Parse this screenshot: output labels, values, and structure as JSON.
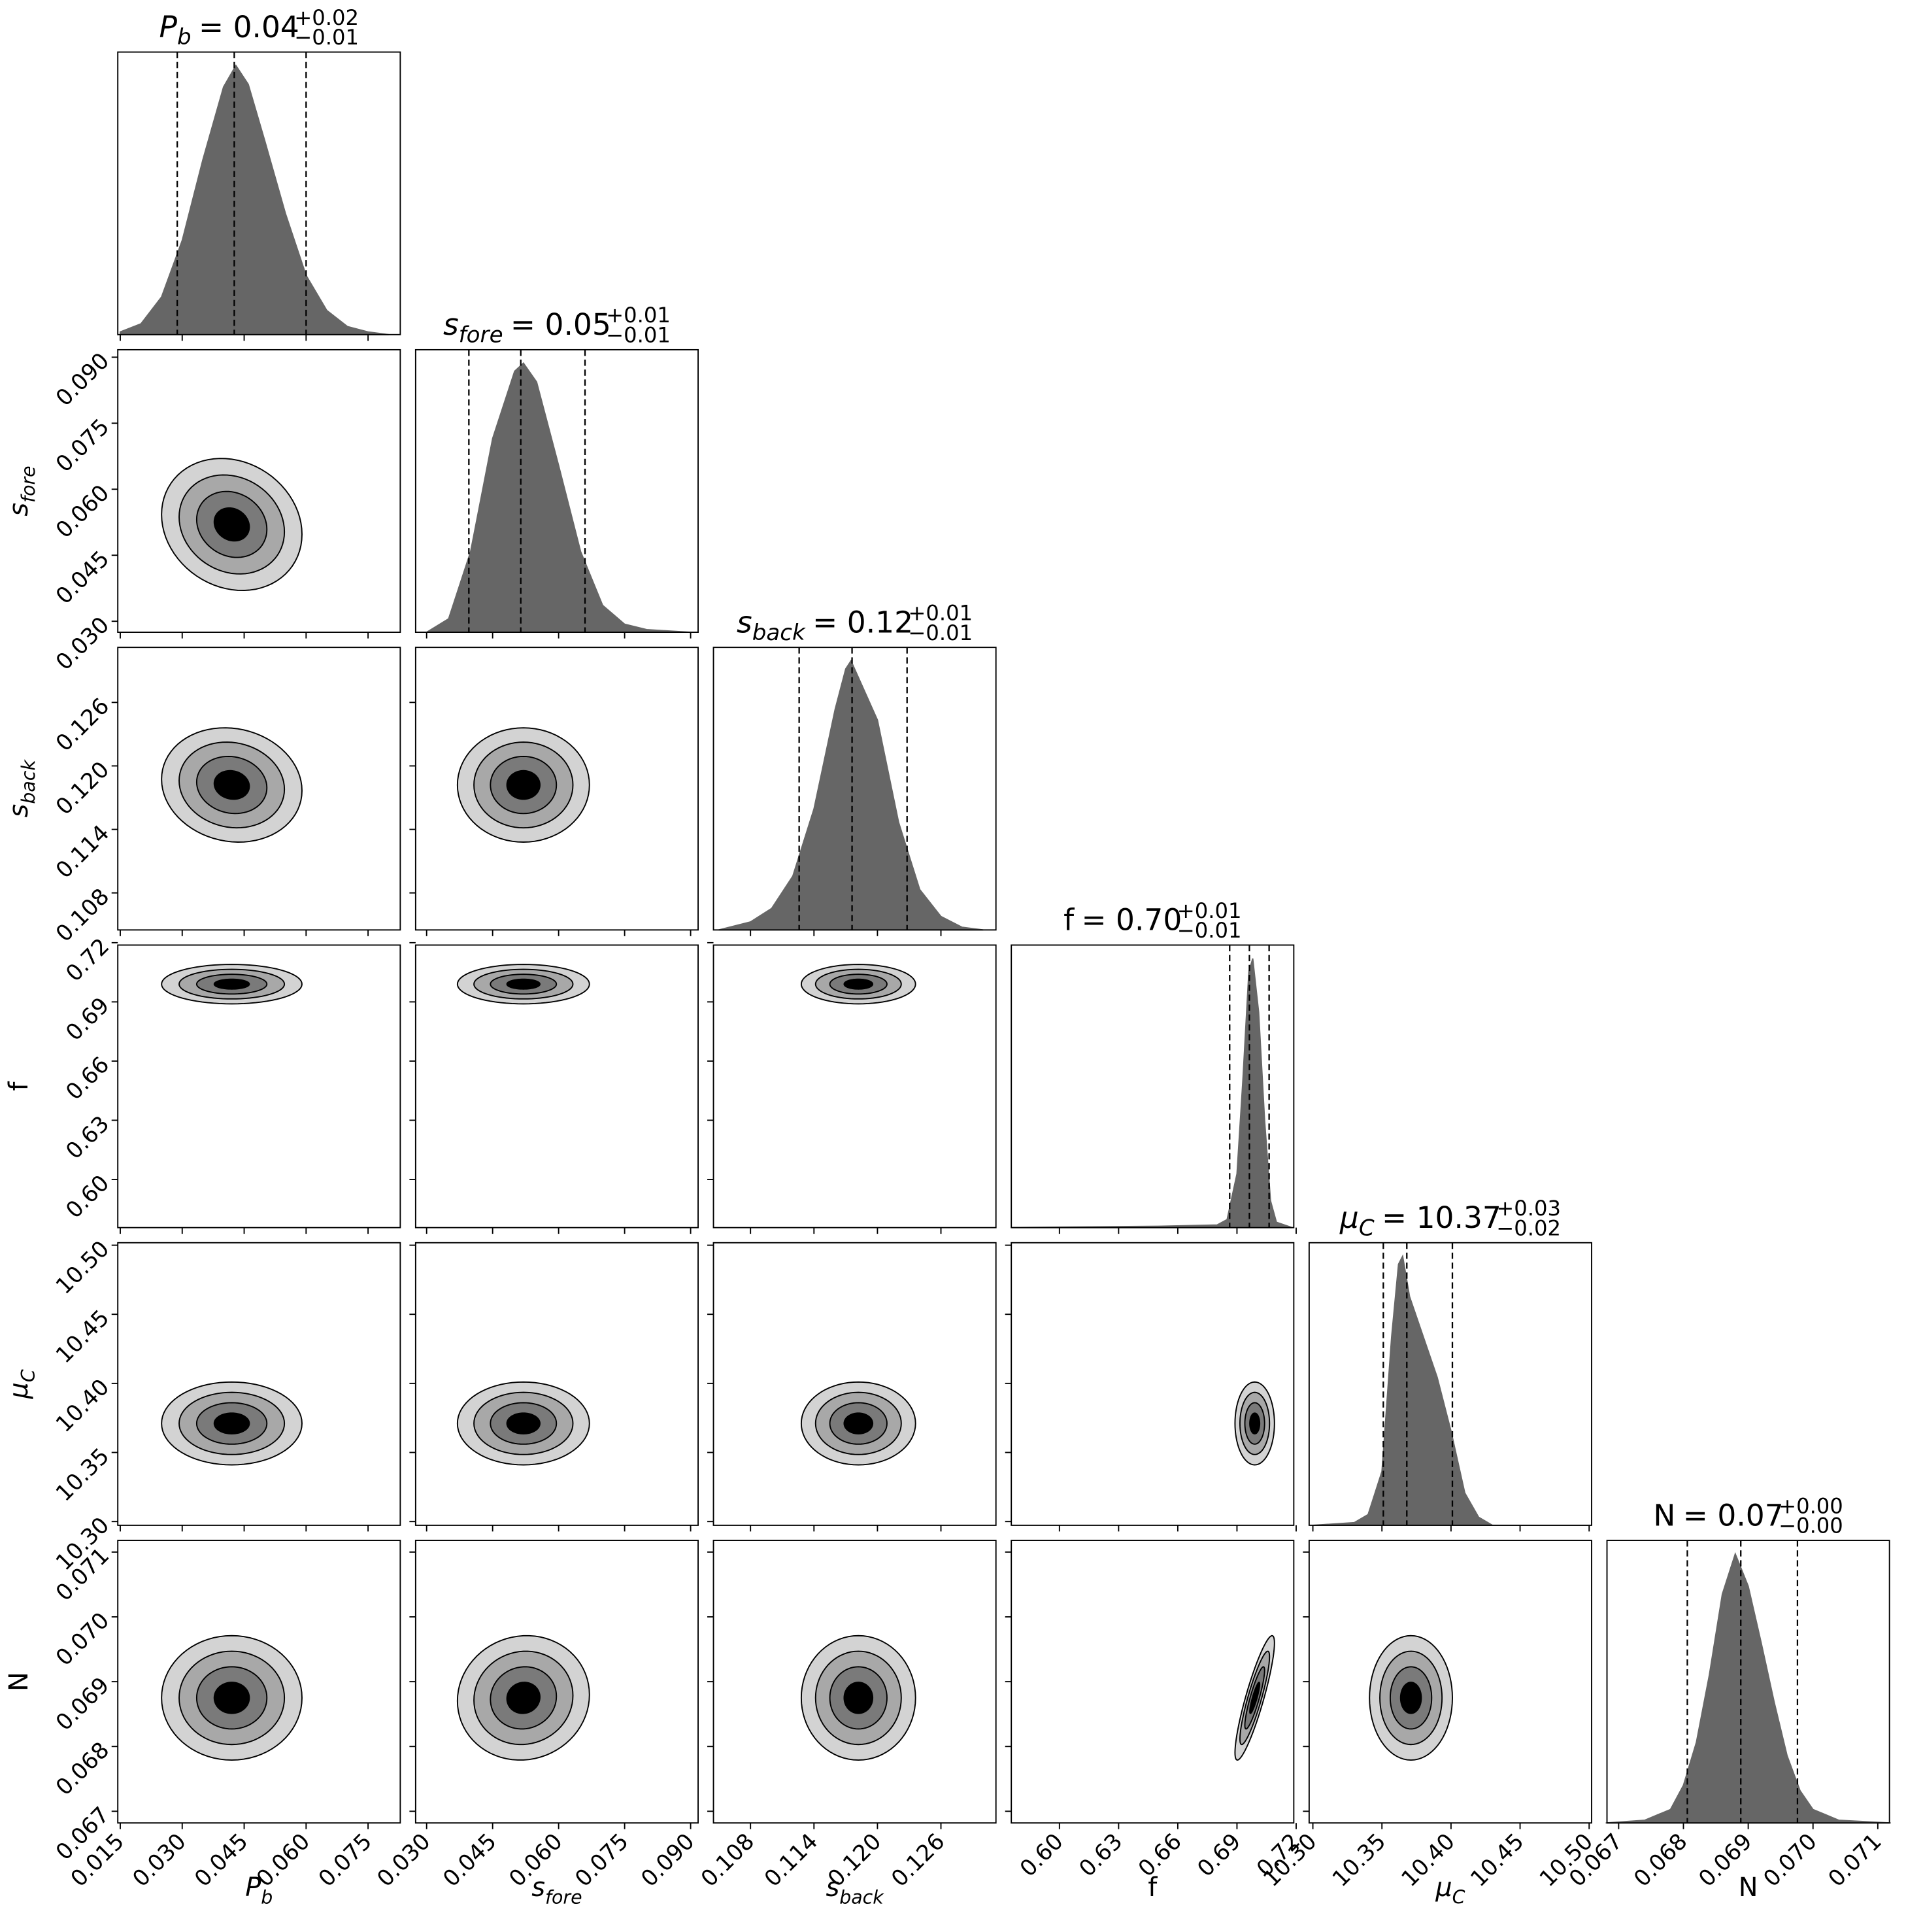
{
  "chart_data": {
    "type": "corner",
    "hist_ylim": [
      0,
      1.05
    ],
    "hist_color": "#666666",
    "levels": [
      2,
      1.5,
      1,
      0.5
    ],
    "level_colors": [
      "#d3d3d3",
      "#a8a8a8",
      "#7a7a7a",
      "#000000"
    ],
    "parameters": [
      {
        "label": {
          "symbol": "P",
          "sub": "b",
          "italic": true
        },
        "title": {
          "value": "= 0.04",
          "plus": "+0.02",
          "minus": "−0.01"
        },
        "lim": [
          0.0144,
          0.0828
        ],
        "ticks": [
          0.015,
          {
            "value": 0.03,
            "label": "0.030"
          },
          0.045,
          {
            "value": 0.06,
            "label": "0.060"
          },
          0.075
        ],
        "quantiles": [
          0.0288,
          0.0426,
          0.06
        ],
        "center": 0.042,
        "spread": 0.0085,
        "hist_x": [
          0.015,
          0.02,
          0.025,
          0.03,
          0.035,
          0.04,
          0.043,
          0.046,
          0.05,
          0.055,
          0.06,
          0.065,
          0.07,
          0.075,
          0.08
        ],
        "hist_y": [
          0.01,
          0.04,
          0.14,
          0.35,
          0.65,
          0.92,
          1.0,
          0.93,
          0.72,
          0.45,
          0.22,
          0.09,
          0.03,
          0.01,
          0.0
        ]
      },
      {
        "label": {
          "symbol": "s",
          "sub": "fore",
          "italic": true
        },
        "title": {
          "value": "= 0.05",
          "plus": "+0.01",
          "minus": "−0.01"
        },
        "lim": [
          0.0275,
          0.0917
        ],
        "ticks": [
          {
            "value": 0.03,
            "label": "0.030"
          },
          0.045,
          {
            "value": 0.06,
            "label": "0.060"
          },
          0.075,
          {
            "value": 0.09,
            "label": "0.090"
          }
        ],
        "quantiles": [
          0.0396,
          0.0514,
          0.066
        ],
        "center": 0.052,
        "spread": 0.0075,
        "hist_x": [
          0.03,
          0.035,
          0.04,
          0.045,
          0.05,
          0.052,
          0.055,
          0.06,
          0.065,
          0.07,
          0.075,
          0.08,
          0.09
        ],
        "hist_y": [
          0.0,
          0.05,
          0.3,
          0.72,
          0.97,
          1.0,
          0.93,
          0.62,
          0.3,
          0.1,
          0.03,
          0.01,
          0.0
        ]
      },
      {
        "label": {
          "symbol": "s",
          "sub": "back",
          "italic": true
        },
        "title": {
          "value": "= 0.12",
          "plus": "+0.01",
          "minus": "−0.01"
        },
        "lim": [
          0.1045,
          0.1312
        ],
        "ticks": [
          0.108,
          0.114,
          {
            "value": 0.12,
            "label": "0.120"
          },
          0.126
        ],
        "quantiles": [
          0.1126,
          0.1176,
          0.1228
        ],
        "center": 0.1182,
        "spread": 0.0027,
        "hist_x": [
          0.105,
          0.108,
          0.11,
          0.112,
          0.114,
          0.116,
          0.117,
          0.1175,
          0.12,
          0.122,
          0.124,
          0.126,
          0.128,
          0.13
        ],
        "hist_y": [
          0.0,
          0.03,
          0.08,
          0.2,
          0.45,
          0.82,
          0.97,
          1.0,
          0.78,
          0.4,
          0.15,
          0.05,
          0.01,
          0.0
        ]
      },
      {
        "label": {
          "symbol": "f",
          "italic": false
        },
        "title": {
          "value": "= 0.70",
          "plus": "+0.01",
          "minus": "−0.01"
        },
        "lim": [
          0.5756,
          0.7188
        ],
        "ticks": [
          {
            "value": 0.6,
            "label": "0.60"
          },
          0.63,
          0.66,
          0.69,
          0.72
        ],
        "quantiles": [
          0.6863,
          0.6963,
          0.7063
        ],
        "center": 0.699,
        "spread": 0.005,
        "hist_x": [
          0.576,
          0.6,
          0.65,
          0.68,
          0.685,
          0.69,
          0.693,
          0.696,
          0.698,
          0.701,
          0.704,
          0.707,
          0.71,
          0.718
        ],
        "hist_y": [
          0.0,
          0.002,
          0.005,
          0.01,
          0.03,
          0.2,
          0.55,
          0.95,
          1.0,
          0.8,
          0.4,
          0.1,
          0.02,
          0.0
        ]
      },
      {
        "label": {
          "symbol": "μ",
          "sub": "C",
          "italic": true
        },
        "title": {
          "value": "= 10.37",
          "plus": "+0.03",
          "minus": "−0.02"
        },
        "lim": [
          10.2973,
          10.5018
        ],
        "ticks": [
          {
            "value": 10.3,
            "label": "10.30"
          },
          10.35,
          {
            "value": 10.4,
            "label": "10.40"
          },
          10.45,
          {
            "value": 10.5,
            "label": "10.50"
          }
        ],
        "quantiles": [
          10.351,
          10.368,
          10.401
        ],
        "center": 10.371,
        "spread": 0.015,
        "hist_x": [
          10.3,
          10.33,
          10.34,
          10.35,
          10.357,
          10.362,
          10.365,
          10.37,
          10.38,
          10.39,
          10.4,
          10.41,
          10.42,
          10.43,
          10.5
        ],
        "hist_y": [
          0.0,
          0.01,
          0.04,
          0.2,
          0.7,
          0.97,
          1.0,
          0.85,
          0.7,
          0.55,
          0.35,
          0.12,
          0.03,
          0.0,
          0.0
        ]
      },
      {
        "label": {
          "symbol": "N",
          "italic": false
        },
        "title": {
          "value": "= 0.07",
          "plus": "+0.00",
          "minus": "−0.00"
        },
        "lim": [
          0.06682,
          0.07118
        ],
        "ticks": [
          0.067,
          0.068,
          0.069,
          {
            "value": 0.07,
            "label": "0.070"
          },
          0.071
        ],
        "quantiles": [
          0.06806,
          0.068885,
          0.06976
        ],
        "center": 0.06875,
        "spread": 0.00048,
        "hist_x": [
          0.0668,
          0.0674,
          0.0678,
          0.068,
          0.0682,
          0.0684,
          0.0686,
          0.0688,
          0.069,
          0.0692,
          0.0694,
          0.0696,
          0.0698,
          0.07,
          0.0704,
          0.0712
        ],
        "hist_y": [
          0.0,
          0.01,
          0.05,
          0.14,
          0.3,
          0.55,
          0.85,
          1.0,
          0.88,
          0.67,
          0.45,
          0.25,
          0.12,
          0.05,
          0.01,
          0.0
        ]
      }
    ],
    "contours": [
      {
        "x": 0,
        "y": 1,
        "rho": -0.15
      },
      {
        "x": 0,
        "y": 2,
        "rho": -0.1
      },
      {
        "x": 0,
        "y": 3,
        "rho": 0.0
      },
      {
        "x": 0,
        "y": 4,
        "rho": 0.0
      },
      {
        "x": 0,
        "y": 5,
        "rho": 0.0
      },
      {
        "x": 1,
        "y": 2,
        "rho": 0.0
      },
      {
        "x": 1,
        "y": 3,
        "rho": 0.0
      },
      {
        "x": 1,
        "y": 4,
        "rho": 0.0
      },
      {
        "x": 1,
        "y": 5,
        "rho": 0.05
      },
      {
        "x": 2,
        "y": 3,
        "rho": 0.0
      },
      {
        "x": 2,
        "y": 4,
        "rho": 0.0
      },
      {
        "x": 2,
        "y": 5,
        "rho": 0.0
      },
      {
        "x": 3,
        "y": 4,
        "rho": 0.0
      },
      {
        "x": 3,
        "y": 5,
        "rho": 0.88
      },
      {
        "x": 4,
        "y": 5,
        "rho": 0.0
      }
    ]
  }
}
